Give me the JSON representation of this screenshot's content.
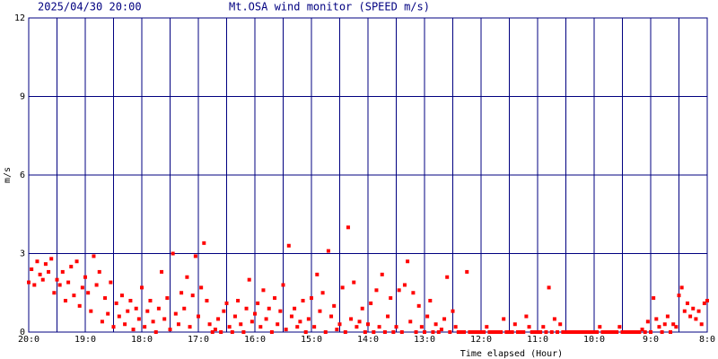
{
  "chart_data": {
    "type": "scatter",
    "timestamp": "2025/04/30 20:00",
    "title": "Mt.OSA wind monitor (SPEED m/s)",
    "xlabel": "Time elapsed (Hour)",
    "ylabel": "m/s",
    "color": "#ff0000",
    "grid_color": "#000080",
    "xlim": [
      20,
      8
    ],
    "ylim": [
      0,
      12
    ],
    "yticks": [
      0,
      3,
      6,
      9,
      12
    ],
    "xticks": [
      {
        "value": 20,
        "label": "20:0"
      },
      {
        "value": 19,
        "label": "19:0"
      },
      {
        "value": 18,
        "label": "18:0"
      },
      {
        "value": 17,
        "label": "17:0"
      },
      {
        "value": 16,
        "label": "16:0"
      },
      {
        "value": 15,
        "label": "15:0"
      },
      {
        "value": 14,
        "label": "14:0"
      },
      {
        "value": 13,
        "label": "13:0"
      },
      {
        "value": 12,
        "label": "12:0"
      },
      {
        "value": 11,
        "label": "11:0"
      },
      {
        "value": 10,
        "label": "10:0"
      },
      {
        "value": 9,
        "label": "9:0"
      },
      {
        "value": 8,
        "label": "8:0"
      }
    ],
    "xminor": [
      19.5,
      18.5,
      17.5,
      16.5,
      15.5,
      14.5,
      13.5,
      12.5,
      11.5,
      10.5,
      9.5,
      8.5
    ],
    "grid": true,
    "x": [
      20,
      19.95,
      19.9,
      19.85,
      19.8,
      19.75,
      19.7,
      19.65,
      19.6,
      19.55,
      19.5,
      19.45,
      19.4,
      19.35,
      19.3,
      19.25,
      19.2,
      19.15,
      19.1,
      19.05,
      19,
      18.95,
      18.9,
      18.85,
      18.8,
      18.75,
      18.7,
      18.65,
      18.6,
      18.55,
      18.5,
      18.45,
      18.4,
      18.35,
      18.3,
      18.25,
      18.2,
      18.15,
      18.1,
      18.05,
      18,
      17.95,
      17.9,
      17.85,
      17.8,
      17.75,
      17.7,
      17.65,
      17.6,
      17.55,
      17.5,
      17.45,
      17.4,
      17.35,
      17.3,
      17.25,
      17.2,
      17.15,
      17.1,
      17.05,
      17,
      16.95,
      16.9,
      16.85,
      16.8,
      16.75,
      16.7,
      16.65,
      16.6,
      16.55,
      16.5,
      16.45,
      16.4,
      16.35,
      16.3,
      16.25,
      16.2,
      16.15,
      16.1,
      16.05,
      16,
      15.95,
      15.9,
      15.85,
      15.8,
      15.75,
      15.7,
      15.65,
      15.6,
      15.55,
      15.5,
      15.45,
      15.4,
      15.35,
      15.3,
      15.25,
      15.2,
      15.15,
      15.1,
      15.05,
      15,
      14.95,
      14.9,
      14.85,
      14.8,
      14.75,
      14.7,
      14.65,
      14.6,
      14.55,
      14.5,
      14.45,
      14.4,
      14.35,
      14.3,
      14.25,
      14.2,
      14.15,
      14.1,
      14.05,
      14,
      13.95,
      13.9,
      13.85,
      13.8,
      13.75,
      13.7,
      13.65,
      13.6,
      13.55,
      13.5,
      13.45,
      13.4,
      13.35,
      13.3,
      13.25,
      13.2,
      13.15,
      13.1,
      13.05,
      13,
      12.95,
      12.9,
      12.85,
      12.8,
      12.75,
      12.7,
      12.65,
      12.6,
      12.55,
      12.5,
      12.45,
      12.4,
      12.35,
      12.3,
      12.25,
      12.2,
      12.15,
      12.1,
      12.05,
      12,
      11.95,
      11.9,
      11.85,
      11.8,
      11.75,
      11.7,
      11.65,
      11.6,
      11.55,
      11.5,
      11.45,
      11.4,
      11.35,
      11.3,
      11.25,
      11.2,
      11.15,
      11.1,
      11.05,
      11,
      10.95,
      10.9,
      10.85,
      10.8,
      10.75,
      10.7,
      10.65,
      10.6,
      10.55,
      10.5,
      10.45,
      10.4,
      10.35,
      10.3,
      10.25,
      10.2,
      10.15,
      10.1,
      10.05,
      10,
      9.95,
      9.9,
      9.85,
      9.8,
      9.75,
      9.7,
      9.65,
      9.6,
      9.55,
      9.5,
      9.45,
      9.4,
      9.35,
      9.3,
      9.25,
      9.2,
      9.15,
      9.1,
      9.05,
      9,
      8.95,
      8.9,
      8.85,
      8.8,
      8.75,
      8.7,
      8.65,
      8.6,
      8.55,
      8.5,
      8.45,
      8.4,
      8.35,
      8.3,
      8.25,
      8.2,
      8.15,
      8.1,
      8.05,
      8
    ],
    "values": [
      1.9,
      2.4,
      1.8,
      2.7,
      2.2,
      2.0,
      2.6,
      2.3,
      2.8,
      1.5,
      2.0,
      1.8,
      2.3,
      1.2,
      1.9,
      2.5,
      1.4,
      2.7,
      1.0,
      1.7,
      2.1,
      1.5,
      0.8,
      2.9,
      1.8,
      2.3,
      0.4,
      1.3,
      0.7,
      1.9,
      0.2,
      1.1,
      0.6,
      1.4,
      0.3,
      0.8,
      1.2,
      0.1,
      0.9,
      0.5,
      1.7,
      0.2,
      0.8,
      1.2,
      0.4,
      0.0,
      0.9,
      2.3,
      0.5,
      1.3,
      0.1,
      3.0,
      0.7,
      0.3,
      1.5,
      0.9,
      2.1,
      0.2,
      1.4,
      2.9,
      0.6,
      1.7,
      3.4,
      1.2,
      0.3,
      0.0,
      0.1,
      0.5,
      0.0,
      0.8,
      1.1,
      0.2,
      0.0,
      0.6,
      1.2,
      0.3,
      0.0,
      0.9,
      2.0,
      0.4,
      0.7,
      1.1,
      0.2,
      1.6,
      0.5,
      0.9,
      0.0,
      1.3,
      0.3,
      0.8,
      1.8,
      0.1,
      3.3,
      0.6,
      0.9,
      0.2,
      0.4,
      1.2,
      0.0,
      0.5,
      1.3,
      0.2,
      2.2,
      0.8,
      1.5,
      0.0,
      3.1,
      0.6,
      1.0,
      0.1,
      0.3,
      1.7,
      0.0,
      4.0,
      0.5,
      1.9,
      0.2,
      0.4,
      0.9,
      0.0,
      0.3,
      1.1,
      0.0,
      1.6,
      0.2,
      2.2,
      0.0,
      0.6,
      1.3,
      0.0,
      0.2,
      1.6,
      0.0,
      1.8,
      2.7,
      0.4,
      1.5,
      0.0,
      1.0,
      0.2,
      0.0,
      0.6,
      1.2,
      0.0,
      0.3,
      0.0,
      0.1,
      0.5,
      2.1,
      0.0,
      0.8,
      0.2,
      0.0,
      0.0,
      0.0,
      2.3,
      0.0,
      0.0,
      0.0,
      0.0,
      0.0,
      0.0,
      0.2,
      0.0,
      0.0,
      0.0,
      0.0,
      0.0,
      0.5,
      0.0,
      0.0,
      0.0,
      0.3,
      0.0,
      0.0,
      0.0,
      0.6,
      0.2,
      0.0,
      0.0,
      0.0,
      0.0,
      0.2,
      0.0,
      1.7,
      0.0,
      0.5,
      0.0,
      0.3,
      0.0,
      0.0,
      0.0,
      0.0,
      0.0,
      0.0,
      0.0,
      0.0,
      0.0,
      0.0,
      0.0,
      0.0,
      0.0,
      0.2,
      0.0,
      0.0,
      0.0,
      0.0,
      0.0,
      0.0,
      0.2,
      0.0,
      0.0,
      0.0,
      0.0,
      0.0,
      0.0,
      0.0,
      0.1,
      0.0,
      0.4,
      0.0,
      1.3,
      0.5,
      0.2,
      0.0,
      0.3,
      0.6,
      0.0,
      0.3,
      0.2,
      1.4,
      1.7,
      0.8,
      1.1,
      0.6,
      0.9,
      0.5,
      0.8,
      0.3,
      1.1,
      1.2
    ]
  }
}
